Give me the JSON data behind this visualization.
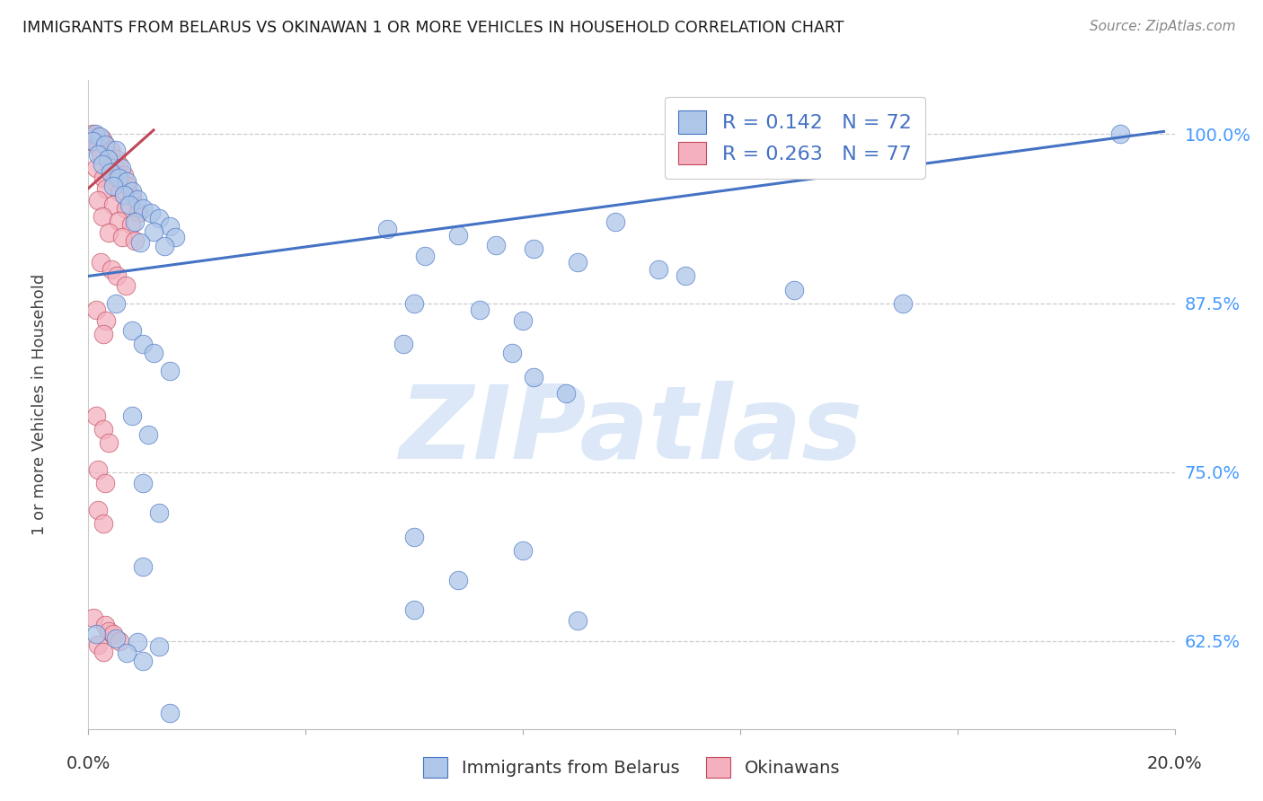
{
  "title": "IMMIGRANTS FROM BELARUS VS OKINAWAN 1 OR MORE VEHICLES IN HOUSEHOLD CORRELATION CHART",
  "source": "Source: ZipAtlas.com",
  "ylabel": "1 or more Vehicles in Household",
  "ytick_labels": [
    "62.5%",
    "75.0%",
    "87.5%",
    "100.0%"
  ],
  "ytick_values": [
    0.625,
    0.75,
    0.875,
    1.0
  ],
  "xlim": [
    0.0,
    0.2
  ],
  "ylim": [
    0.56,
    1.04
  ],
  "legend_blue_r": "0.142",
  "legend_blue_n": "72",
  "legend_pink_r": "0.263",
  "legend_pink_n": "77",
  "legend_label_blue": "Immigrants from Belarus",
  "legend_label_pink": "Okinawans",
  "blue_color": "#aec6e8",
  "pink_color": "#f4b0be",
  "trendline_blue": "#4472c4",
  "trendline_pink": "#c0485a",
  "watermark": "ZIPatlas",
  "watermark_color": "#dce8f8",
  "blue_trendline_x0": 0.0,
  "blue_trendline_y0": 0.895,
  "blue_trendline_x1": 0.198,
  "blue_trendline_y1": 1.002,
  "pink_trendline_x0": 0.0,
  "pink_trendline_y0": 0.96,
  "pink_trendline_x1": 0.012,
  "pink_trendline_y1": 1.003,
  "blue_scatter": [
    [
      0.0012,
      1.0
    ],
    [
      0.002,
      0.998
    ],
    [
      0.0008,
      0.995
    ],
    [
      0.003,
      0.992
    ],
    [
      0.005,
      0.988
    ],
    [
      0.0018,
      0.985
    ],
    [
      0.0035,
      0.982
    ],
    [
      0.0025,
      0.978
    ],
    [
      0.006,
      0.975
    ],
    [
      0.004,
      0.972
    ],
    [
      0.0055,
      0.968
    ],
    [
      0.007,
      0.965
    ],
    [
      0.0045,
      0.962
    ],
    [
      0.008,
      0.958
    ],
    [
      0.0065,
      0.955
    ],
    [
      0.009,
      0.952
    ],
    [
      0.0075,
      0.948
    ],
    [
      0.01,
      0.945
    ],
    [
      0.0115,
      0.942
    ],
    [
      0.013,
      0.938
    ],
    [
      0.0085,
      0.935
    ],
    [
      0.015,
      0.932
    ],
    [
      0.012,
      0.928
    ],
    [
      0.016,
      0.924
    ],
    [
      0.0095,
      0.92
    ],
    [
      0.014,
      0.917
    ],
    [
      0.055,
      0.93
    ],
    [
      0.068,
      0.925
    ],
    [
      0.075,
      0.918
    ],
    [
      0.082,
      0.915
    ],
    [
      0.062,
      0.91
    ],
    [
      0.09,
      0.905
    ],
    [
      0.105,
      0.9
    ],
    [
      0.097,
      0.935
    ],
    [
      0.11,
      0.895
    ],
    [
      0.13,
      0.885
    ],
    [
      0.15,
      0.875
    ],
    [
      0.19,
      1.0
    ],
    [
      0.06,
      0.875
    ],
    [
      0.072,
      0.87
    ],
    [
      0.08,
      0.862
    ],
    [
      0.058,
      0.845
    ],
    [
      0.078,
      0.838
    ],
    [
      0.082,
      0.82
    ],
    [
      0.088,
      0.808
    ],
    [
      0.005,
      0.875
    ],
    [
      0.008,
      0.855
    ],
    [
      0.01,
      0.845
    ],
    [
      0.012,
      0.838
    ],
    [
      0.015,
      0.825
    ],
    [
      0.008,
      0.792
    ],
    [
      0.011,
      0.778
    ],
    [
      0.01,
      0.742
    ],
    [
      0.013,
      0.72
    ],
    [
      0.06,
      0.702
    ],
    [
      0.08,
      0.692
    ],
    [
      0.06,
      0.648
    ],
    [
      0.09,
      0.64
    ],
    [
      0.0015,
      0.63
    ],
    [
      0.005,
      0.627
    ],
    [
      0.009,
      0.624
    ],
    [
      0.013,
      0.621
    ],
    [
      0.007,
      0.616
    ],
    [
      0.01,
      0.61
    ],
    [
      0.015,
      0.572
    ],
    [
      0.068,
      0.67
    ],
    [
      0.01,
      0.68
    ]
  ],
  "pink_scatter": [
    [
      0.0008,
      1.0
    ],
    [
      0.0015,
      0.998
    ],
    [
      0.0025,
      0.996
    ],
    [
      0.001,
      0.994
    ],
    [
      0.003,
      0.992
    ],
    [
      0.0018,
      0.99
    ],
    [
      0.004,
      0.988
    ],
    [
      0.0022,
      0.985
    ],
    [
      0.005,
      0.982
    ],
    [
      0.0035,
      0.98
    ],
    [
      0.0055,
      0.978
    ],
    [
      0.0015,
      0.975
    ],
    [
      0.0042,
      0.972
    ],
    [
      0.0065,
      0.97
    ],
    [
      0.0028,
      0.968
    ],
    [
      0.0048,
      0.965
    ],
    [
      0.0072,
      0.962
    ],
    [
      0.0032,
      0.96
    ],
    [
      0.0058,
      0.957
    ],
    [
      0.008,
      0.954
    ],
    [
      0.0018,
      0.951
    ],
    [
      0.0045,
      0.948
    ],
    [
      0.0068,
      0.945
    ],
    [
      0.0092,
      0.942
    ],
    [
      0.0025,
      0.939
    ],
    [
      0.0055,
      0.936
    ],
    [
      0.0078,
      0.933
    ],
    [
      0.0038,
      0.927
    ],
    [
      0.0062,
      0.924
    ],
    [
      0.0085,
      0.921
    ],
    [
      0.0022,
      0.905
    ],
    [
      0.0042,
      0.9
    ],
    [
      0.0052,
      0.895
    ],
    [
      0.0068,
      0.888
    ],
    [
      0.0015,
      0.87
    ],
    [
      0.0032,
      0.862
    ],
    [
      0.0028,
      0.852
    ],
    [
      0.0015,
      0.792
    ],
    [
      0.0028,
      0.782
    ],
    [
      0.0038,
      0.772
    ],
    [
      0.0018,
      0.752
    ],
    [
      0.003,
      0.742
    ],
    [
      0.0018,
      0.722
    ],
    [
      0.0028,
      0.712
    ],
    [
      0.001,
      0.642
    ],
    [
      0.003,
      0.637
    ],
    [
      0.0038,
      0.632
    ],
    [
      0.0018,
      0.622
    ],
    [
      0.0028,
      0.617
    ],
    [
      0.0045,
      0.63
    ],
    [
      0.0058,
      0.625
    ]
  ]
}
